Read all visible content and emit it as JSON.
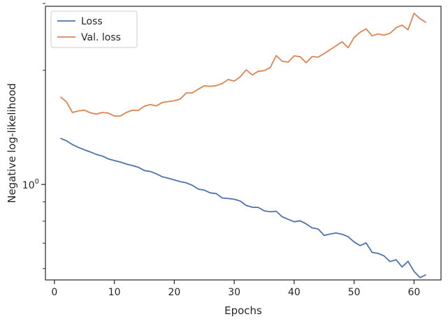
{
  "chart_data": {
    "type": "line",
    "xlabel": "Epochs",
    "ylabel": "Negative log-likelihood",
    "xlim": [
      -1.5,
      64.5
    ],
    "ylim": [
      0.56,
      2.95
    ],
    "yscale": "log",
    "x_ticks": [
      0,
      10,
      20,
      30,
      40,
      50,
      60
    ],
    "x_tick_labels": [
      "0",
      "10",
      "20",
      "30",
      "40",
      "50",
      "60"
    ],
    "y_major_ticks": [
      1.0
    ],
    "y_major_tick_labels": [
      "10"
    ],
    "y_major_tick_superscripts": [
      "0"
    ],
    "y_minor_ticks": [
      0.6,
      0.7,
      0.8,
      0.9,
      2.0,
      3.0
    ],
    "grid": false,
    "legend_position": "upper left",
    "x": [
      1,
      2,
      3,
      4,
      5,
      6,
      7,
      8,
      9,
      10,
      11,
      12,
      13,
      14,
      15,
      16,
      17,
      18,
      19,
      20,
      21,
      22,
      23,
      24,
      25,
      26,
      27,
      28,
      29,
      30,
      31,
      32,
      33,
      34,
      35,
      36,
      37,
      38,
      39,
      40,
      41,
      42,
      43,
      44,
      45,
      46,
      47,
      48,
      49,
      50,
      51,
      52,
      53,
      54,
      55,
      56,
      57,
      58,
      59,
      60,
      61,
      62
    ],
    "series": [
      {
        "name": "Loss",
        "color": "#4c72b0",
        "values": [
          1.323,
          1.304,
          1.274,
          1.252,
          1.234,
          1.218,
          1.2,
          1.188,
          1.168,
          1.156,
          1.146,
          1.132,
          1.122,
          1.11,
          1.088,
          1.082,
          1.066,
          1.048,
          1.038,
          1.028,
          1.017,
          1.01,
          0.995,
          0.972,
          0.966,
          0.95,
          0.946,
          0.921,
          0.918,
          0.914,
          0.904,
          0.88,
          0.871,
          0.87,
          0.852,
          0.847,
          0.85,
          0.822,
          0.809,
          0.797,
          0.802,
          0.787,
          0.768,
          0.763,
          0.734,
          0.74,
          0.745,
          0.739,
          0.728,
          0.705,
          0.69,
          0.701,
          0.662,
          0.658,
          0.648,
          0.626,
          0.633,
          0.606,
          0.627,
          0.59,
          0.568,
          0.578
        ]
      },
      {
        "name": "Val. loss",
        "color": "#dd8452",
        "values": [
          1.702,
          1.652,
          1.548,
          1.563,
          1.57,
          1.545,
          1.533,
          1.548,
          1.542,
          1.515,
          1.515,
          1.548,
          1.569,
          1.568,
          1.608,
          1.624,
          1.611,
          1.645,
          1.654,
          1.662,
          1.68,
          1.743,
          1.743,
          1.783,
          1.821,
          1.815,
          1.822,
          1.847,
          1.891,
          1.873,
          1.922,
          2.006,
          1.945,
          1.987,
          1.996,
          2.033,
          2.187,
          2.114,
          2.102,
          2.183,
          2.172,
          2.094,
          2.174,
          2.166,
          2.214,
          2.266,
          2.322,
          2.377,
          2.294,
          2.442,
          2.52,
          2.571,
          2.466,
          2.495,
          2.475,
          2.504,
          2.589,
          2.631,
          2.557,
          2.826,
          2.736,
          2.673
        ]
      }
    ]
  }
}
